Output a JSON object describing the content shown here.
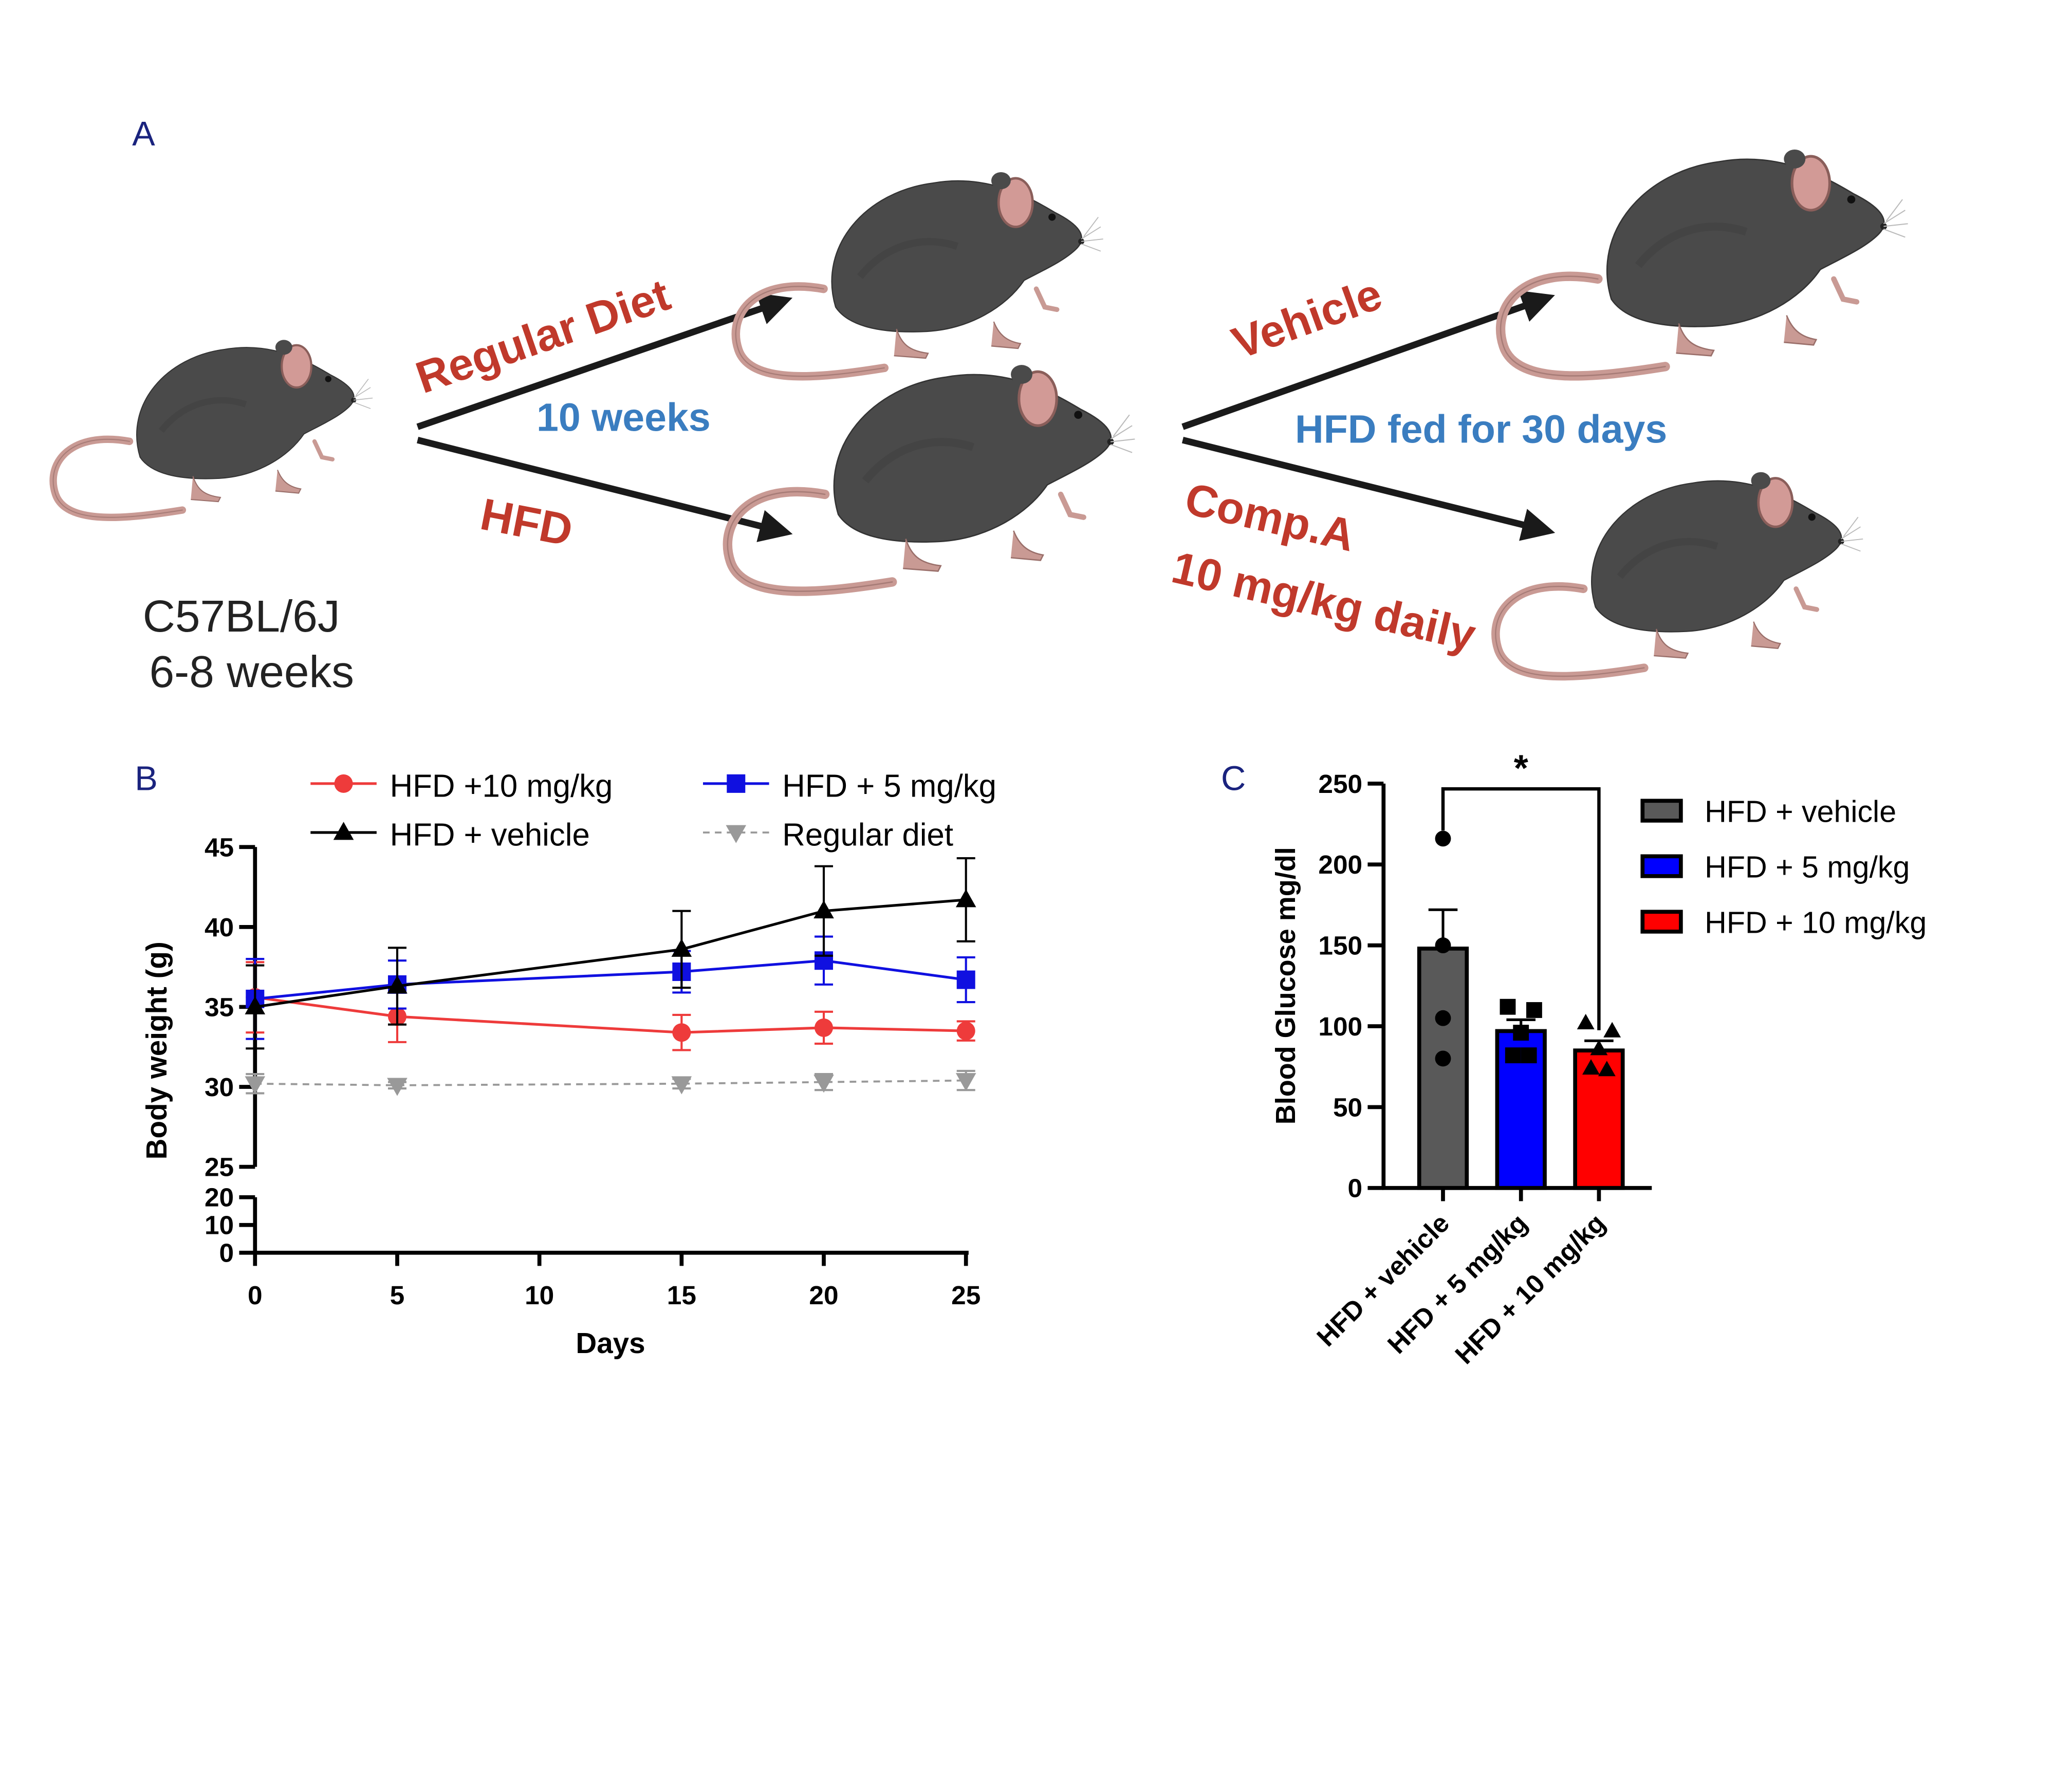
{
  "panel_a": {
    "label": "A",
    "strain": "C57BL/6J",
    "age": "6-8 weeks",
    "regular_diet_label": "Regular Diet",
    "hfd_label": "HFD",
    "duration_label": "10 weeks",
    "vehicle_label": "Vehicle",
    "treatment_duration_label": "HFD fed for 30 days",
    "compound_label": "Comp.A",
    "dose_label": "10 mg/kg daily",
    "colors": {
      "red_text": "#c0392b",
      "blue_text": "#3a7dc0",
      "arrow": "#1a1a1a",
      "mouse_body": "#4a4a4a",
      "mouse_tail": "#c99a94"
    }
  },
  "chart_data": [
    {
      "type": "line",
      "panel_label": "B",
      "xlabel": "Days",
      "ylabel": "Body weight (g)",
      "x_ticks": [
        "0",
        "5",
        "10",
        "15",
        "20",
        "25"
      ],
      "y_ticks_upper": [
        "25",
        "30",
        "35",
        "40",
        "45"
      ],
      "y_ticks_lower": [
        "0",
        "10",
        "20"
      ],
      "xlim": [
        0,
        25
      ],
      "ylim_upper": [
        25,
        45
      ],
      "ylim_lower": [
        0,
        20
      ],
      "legend_position": "top",
      "grid": false,
      "series": [
        {
          "name": "HFD +10 mg/kg",
          "color": "#ee3b3b",
          "marker": "circle",
          "dashed": false,
          "x": [
            0,
            5,
            15,
            20,
            25
          ],
          "y": [
            35.6,
            34.4,
            33.4,
            33.7,
            33.5
          ],
          "err": [
            2.2,
            1.6,
            1.1,
            1.0,
            0.6
          ]
        },
        {
          "name": "HFD + 5 mg/kg",
          "color": "#1010e0",
          "marker": "square",
          "dashed": false,
          "x": [
            0,
            5,
            15,
            20,
            25
          ],
          "y": [
            35.5,
            36.4,
            37.2,
            37.9,
            36.7
          ],
          "err": [
            2.5,
            1.5,
            1.3,
            1.5,
            1.4
          ]
        },
        {
          "name": "HFD + vehicle",
          "color": "#000000",
          "marker": "triangle-up",
          "dashed": false,
          "x": [
            0,
            5,
            15,
            20,
            25
          ],
          "y": [
            35.0,
            36.3,
            38.6,
            41.0,
            41.7
          ],
          "err": [
            2.6,
            2.4,
            2.4,
            2.8,
            2.6
          ]
        },
        {
          "name": "Regular diet",
          "color": "#999999",
          "marker": "triangle-down",
          "dashed": true,
          "x": [
            0,
            5,
            15,
            20,
            25
          ],
          "y": [
            30.2,
            30.1,
            30.2,
            30.3,
            30.4
          ],
          "err": [
            0.6,
            0.2,
            0.3,
            0.5,
            0.6
          ]
        }
      ]
    },
    {
      "type": "bar",
      "panel_label": "C",
      "ylabel": "Blood Glucose mg/dl",
      "categories": [
        "HFD + vehicle",
        "HFD + 5 mg/kg",
        "HFD + 10 mg/kg"
      ],
      "values": [
        148,
        97,
        85
      ],
      "errors": [
        24,
        7,
        6
      ],
      "colors": [
        "#595959",
        "#0000ff",
        "#ff0000"
      ],
      "points": [
        [
          216,
          150,
          105,
          80
        ],
        [
          112,
          110,
          96,
          82,
          82
        ],
        [
          102,
          97,
          86,
          74,
          73
        ]
      ],
      "point_markers": [
        "circle",
        "square",
        "triangle-up"
      ],
      "y_ticks": [
        "0",
        "50",
        "100",
        "150",
        "200",
        "250"
      ],
      "ylim": [
        0,
        250
      ],
      "significance": "*",
      "significance_between": [
        0,
        2
      ],
      "legend_position": "right",
      "grid": false
    }
  ]
}
